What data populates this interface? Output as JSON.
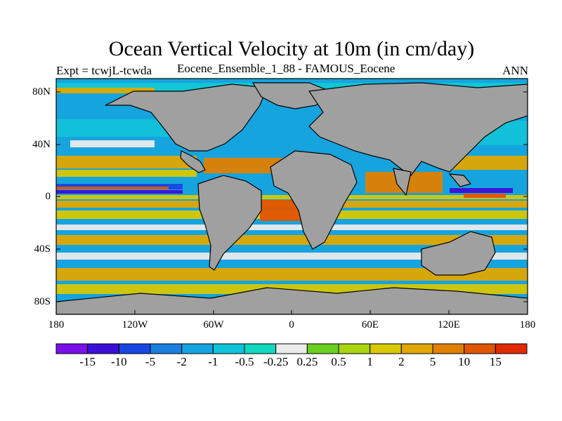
{
  "title": "Ocean Vertical Velocity at 10m (in cm/day)",
  "subtitle_left": "Expt = tcwjL-tcwda",
  "subtitle_center": "Eocene_Ensemble_1_88 - FAMOUS_Eocene",
  "subtitle_right": "ANN",
  "lat_ticks": [
    "80N",
    "40N",
    "0",
    "40S",
    "80S"
  ],
  "lon_ticks": [
    "180",
    "120W",
    "60W",
    "0",
    "60E",
    "120E",
    "180"
  ],
  "colorbar": {
    "labels": [
      "-15",
      "-10",
      "-5",
      "-2",
      "-1",
      "-0.5",
      "-0.25",
      "0.25",
      "0.5",
      "1",
      "2",
      "5",
      "10",
      "15"
    ],
    "colors": [
      "#7a10e8",
      "#3c0fd8",
      "#1a46e0",
      "#1a80e0",
      "#16a4df",
      "#10c3d8",
      "#12d8c0",
      "#ebebeb",
      "#6ad020",
      "#a8d510",
      "#d8c800",
      "#e0a800",
      "#e08000",
      "#e05500",
      "#e02a00"
    ]
  },
  "colors": {
    "land": "#a0a0a0",
    "coast": "#000000"
  }
}
